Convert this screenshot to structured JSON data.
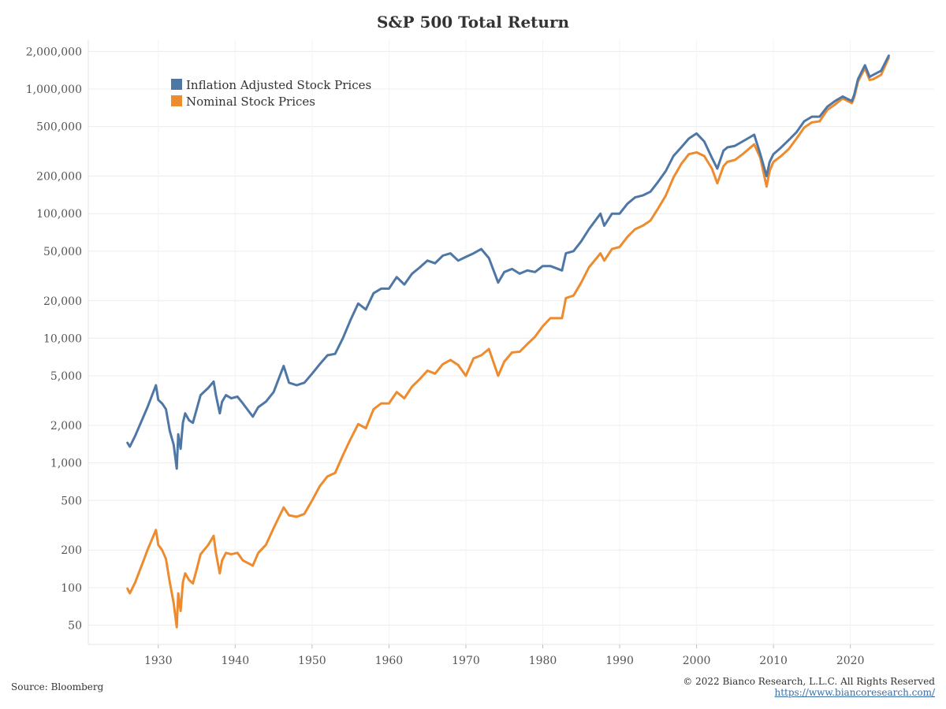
{
  "chart_data": {
    "type": "line",
    "title": "S&P 500 Total Return",
    "xlabel": "",
    "ylabel": "",
    "y_scale": "log",
    "ylim": [
      35,
      2500000
    ],
    "xlim": [
      1920.9,
      2030.9
    ],
    "grid": true,
    "legend_position": "top-left",
    "x_ticks": [
      1930,
      1940,
      1950,
      1960,
      1970,
      1980,
      1990,
      2000,
      2010,
      2020
    ],
    "y_ticks": [
      50,
      100,
      200,
      500,
      1000,
      2000,
      5000,
      10000,
      20000,
      50000,
      100000,
      200000,
      500000,
      1000000,
      2000000
    ],
    "y_tick_labels": [
      "50",
      "100",
      "200",
      "500",
      "1,000",
      "2,000",
      "5,000",
      "10,000",
      "20,000",
      "50,000",
      "100,000",
      "200,000",
      "500,000",
      "1,000,000",
      "2,000,000"
    ],
    "series": [
      {
        "name": "Inflation Adjusted Stock Prices",
        "color": "#4e77a6",
        "x": [
          1926.0,
          1926.3,
          1927.0,
          1928.0,
          1928.6,
          1929.7,
          1930.0,
          1930.5,
          1931.0,
          1931.5,
          1932.0,
          1932.4,
          1932.6,
          1932.9,
          1933.2,
          1933.5,
          1934.0,
          1934.5,
          1935.0,
          1935.5,
          1936.5,
          1937.2,
          1937.5,
          1938.0,
          1938.3,
          1938.8,
          1939.5,
          1940.3,
          1941.0,
          1942.3,
          1943.0,
          1944.0,
          1945.0,
          1946.3,
          1947.0,
          1948.0,
          1949.0,
          1950.0,
          1951.0,
          1952.0,
          1953.0,
          1954.0,
          1955.0,
          1956.0,
          1957.0,
          1958.0,
          1959.0,
          1960.0,
          1961.0,
          1962.0,
          1963.0,
          1964.0,
          1965.0,
          1966.0,
          1967.0,
          1968.0,
          1969.0,
          1970.0,
          1971.0,
          1972.0,
          1973.0,
          1974.2,
          1975.0,
          1976.0,
          1977.0,
          1978.0,
          1979.0,
          1980.0,
          1981.0,
          1982.5,
          1983.0,
          1984.0,
          1985.0,
          1986.0,
          1987.5,
          1988.0,
          1989.0,
          1990.0,
          1991.0,
          1992.0,
          1993.0,
          1994.0,
          1995.0,
          1996.0,
          1997.0,
          1998.0,
          1999.0,
          2000.0,
          2001.0,
          2002.0,
          2002.7,
          2003.5,
          2004.0,
          2005.0,
          2006.0,
          2007.5,
          2008.3,
          2009.1,
          2009.5,
          2010.0,
          2011.0,
          2012.0,
          2013.0,
          2014.0,
          2015.0,
          2016.0,
          2017.0,
          2018.0,
          2019.0,
          2020.2,
          2020.5,
          2021.0,
          2021.9,
          2022.5,
          2023.0,
          2024.0,
          2025.0
        ],
        "values": [
          1450,
          1350,
          1650,
          2300,
          2800,
          4200,
          3200,
          3000,
          2700,
          1800,
          1400,
          900,
          1700,
          1300,
          2100,
          2500,
          2200,
          2100,
          2700,
          3500,
          4000,
          4500,
          3500,
          2500,
          3100,
          3500,
          3300,
          3400,
          3000,
          2350,
          2800,
          3100,
          3700,
          6000,
          4400,
          4200,
          4400,
          5200,
          6200,
          7300,
          7500,
          10000,
          14000,
          19000,
          17000,
          23000,
          25000,
          25000,
          31000,
          27000,
          33000,
          37000,
          42000,
          40000,
          46000,
          48000,
          42000,
          45000,
          48000,
          52000,
          44000,
          28000,
          34000,
          36000,
          33000,
          35000,
          34000,
          38000,
          38000,
          35000,
          48000,
          50000,
          60000,
          75000,
          100000,
          80000,
          100000,
          100000,
          120000,
          135000,
          140000,
          150000,
          180000,
          220000,
          290000,
          340000,
          400000,
          440000,
          380000,
          280000,
          230000,
          320000,
          340000,
          350000,
          380000,
          430000,
          300000,
          200000,
          260000,
          300000,
          340000,
          390000,
          450000,
          550000,
          600000,
          600000,
          720000,
          800000,
          870000,
          800000,
          900000,
          1200000,
          1550000,
          1250000,
          1300000,
          1400000,
          1850000
        ]
      },
      {
        "name": "Nominal Stock Prices",
        "color": "#ee8b2e",
        "x": [
          1926.0,
          1926.3,
          1927.0,
          1928.0,
          1928.6,
          1929.7,
          1930.0,
          1930.5,
          1931.0,
          1931.5,
          1932.0,
          1932.4,
          1932.6,
          1932.9,
          1933.2,
          1933.5,
          1934.0,
          1934.5,
          1935.0,
          1935.5,
          1936.5,
          1937.2,
          1937.5,
          1938.0,
          1938.3,
          1938.8,
          1939.5,
          1940.3,
          1941.0,
          1942.3,
          1943.0,
          1944.0,
          1945.0,
          1946.3,
          1947.0,
          1948.0,
          1949.0,
          1950.0,
          1951.0,
          1952.0,
          1953.0,
          1954.0,
          1955.0,
          1956.0,
          1957.0,
          1958.0,
          1959.0,
          1960.0,
          1961.0,
          1962.0,
          1963.0,
          1964.0,
          1965.0,
          1966.0,
          1967.0,
          1968.0,
          1969.0,
          1970.0,
          1971.0,
          1972.0,
          1973.0,
          1974.2,
          1975.0,
          1976.0,
          1977.0,
          1978.0,
          1979.0,
          1980.0,
          1981.0,
          1982.5,
          1983.0,
          1984.0,
          1985.0,
          1986.0,
          1987.5,
          1988.0,
          1989.0,
          1990.0,
          1991.0,
          1992.0,
          1993.0,
          1994.0,
          1995.0,
          1996.0,
          1997.0,
          1998.0,
          1999.0,
          2000.0,
          2001.0,
          2002.0,
          2002.7,
          2003.5,
          2004.0,
          2005.0,
          2006.0,
          2007.5,
          2008.3,
          2009.1,
          2009.5,
          2010.0,
          2011.0,
          2012.0,
          2013.0,
          2014.0,
          2015.0,
          2016.0,
          2017.0,
          2018.0,
          2019.0,
          2020.2,
          2020.5,
          2021.0,
          2021.9,
          2022.5,
          2023.0,
          2024.0,
          2025.0
        ],
        "values": [
          98,
          90,
          110,
          160,
          200,
          290,
          220,
          200,
          170,
          110,
          75,
          48,
          90,
          65,
          110,
          130,
          115,
          108,
          140,
          185,
          220,
          260,
          190,
          130,
          165,
          190,
          185,
          190,
          165,
          150,
          190,
          220,
          300,
          440,
          380,
          370,
          390,
          500,
          650,
          780,
          830,
          1150,
          1550,
          2050,
          1900,
          2700,
          3000,
          3000,
          3700,
          3300,
          4100,
          4700,
          5500,
          5200,
          6200,
          6700,
          6100,
          5000,
          6900,
          7300,
          8200,
          5000,
          6500,
          7700,
          7800,
          9000,
          10300,
          12500,
          14500,
          14500,
          21000,
          22000,
          28000,
          37000,
          48000,
          42000,
          52000,
          54000,
          65000,
          75000,
          80000,
          88000,
          110000,
          140000,
          195000,
          250000,
          300000,
          310000,
          290000,
          230000,
          175000,
          240000,
          260000,
          270000,
          300000,
          360000,
          280000,
          165000,
          220000,
          260000,
          290000,
          330000,
          400000,
          490000,
          540000,
          550000,
          680000,
          750000,
          840000,
          770000,
          860000,
          1150000,
          1470000,
          1180000,
          1200000,
          1300000,
          1780000
        ]
      }
    ]
  },
  "footer": {
    "source": "Source: Bloomberg",
    "copyright": "© 2022 Bianco Research, L.L.C. All Rights Reserved",
    "url": "https://www.biancoresearch.com/"
  }
}
